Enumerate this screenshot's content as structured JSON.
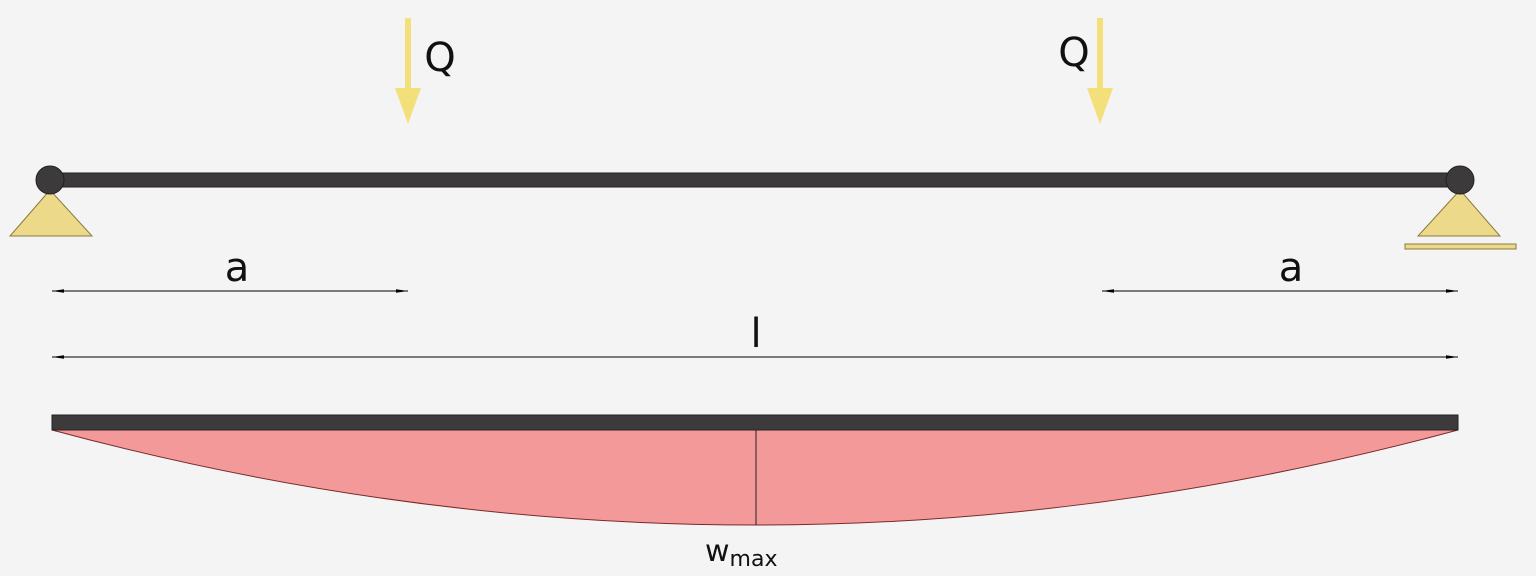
{
  "loads": [
    {
      "label": "Q"
    },
    {
      "label": "Q"
    }
  ],
  "dimensions": [
    {
      "label": "a"
    },
    {
      "label": "a"
    },
    {
      "label": "l"
    }
  ],
  "deflection": {
    "label": "w",
    "subscript": "max"
  }
}
